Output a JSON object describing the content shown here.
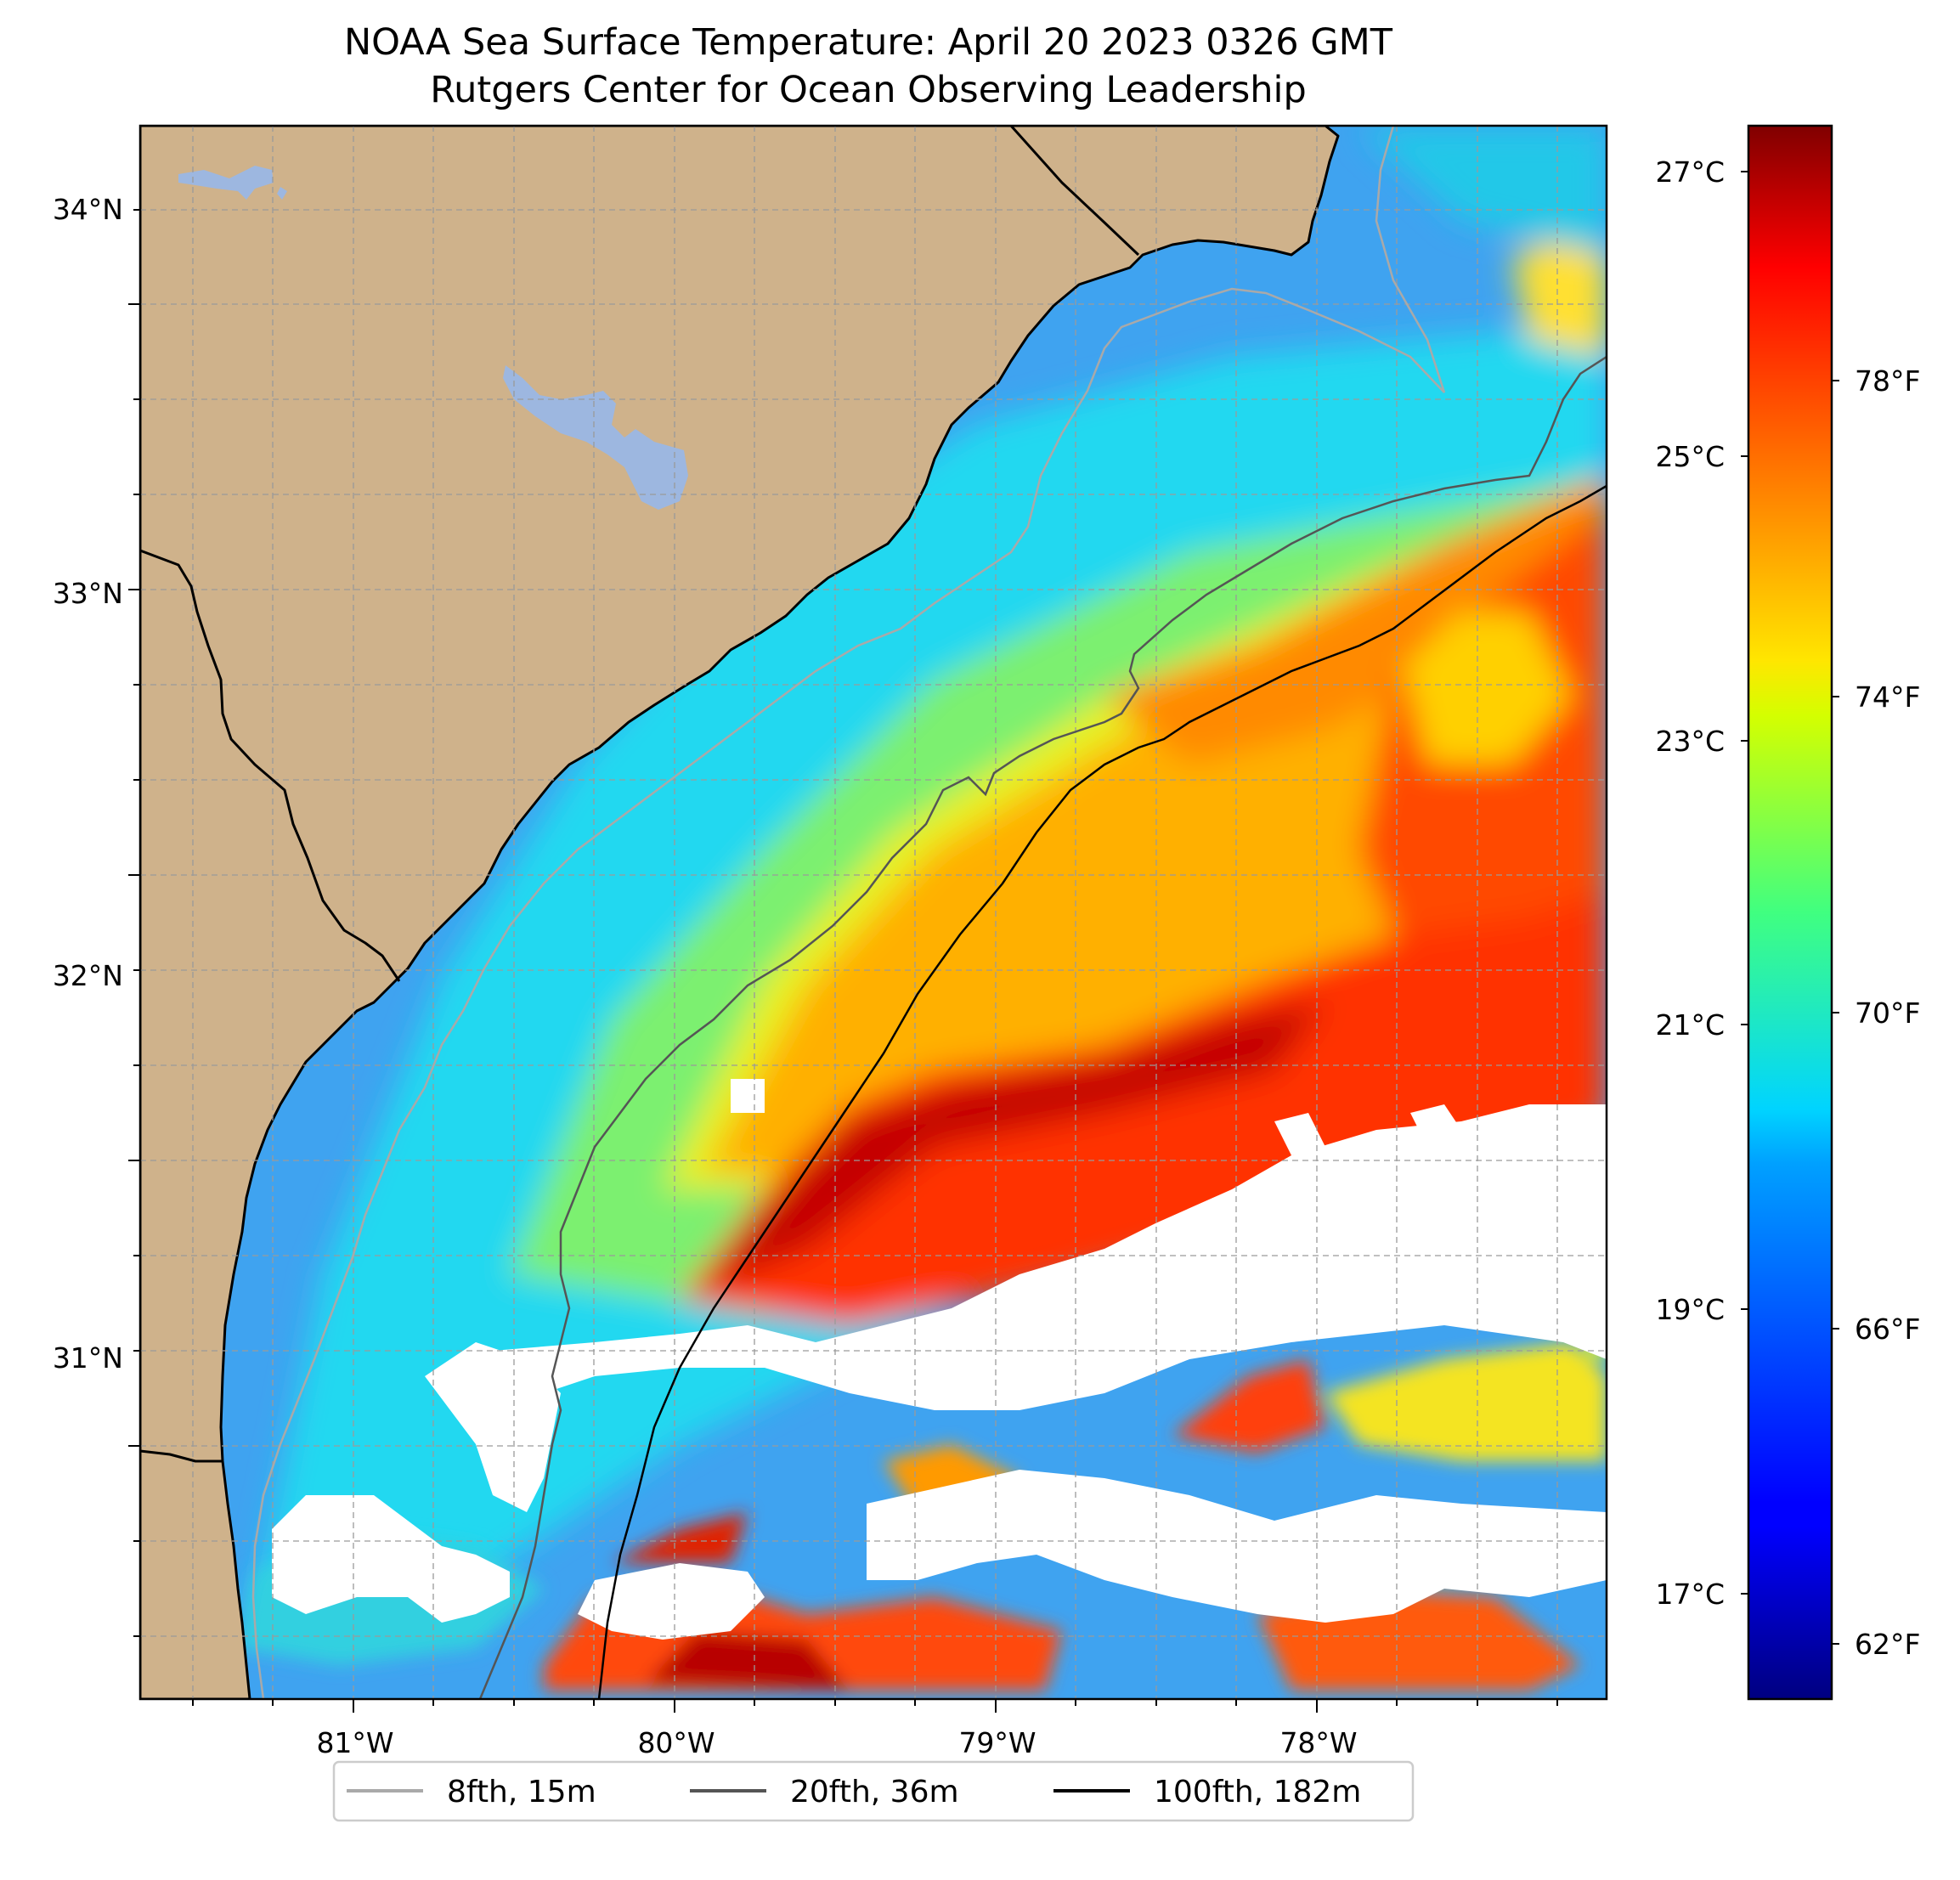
{
  "title": {
    "line1": "NOAA Sea Surface Temperature: April 20 2023 0326 GMT",
    "line2": "Rutgers Center for Ocean Observing Leadership"
  },
  "map": {
    "lon_ticks": [
      "81°W",
      "80°W",
      "79°W",
      "78°W"
    ],
    "lat_ticks": [
      "34°N",
      "33°N",
      "32°N",
      "31°N"
    ],
    "extent": {
      "lon_min": -81.68,
      "lon_max": -77.1,
      "lat_min": 30.08,
      "lat_max": 34.22
    },
    "colors": {
      "land": "#cfb28b",
      "lake": "#9db7e0",
      "no_data": "#ffffff",
      "grid": "#9a9a9a"
    }
  },
  "colorbar": {
    "celsius_ticks": [
      "27°C",
      "25°C",
      "23°C",
      "21°C",
      "19°C",
      "17°C"
    ],
    "fahrenheit_ticks": [
      "78°F",
      "74°F",
      "70°F",
      "66°F",
      "62°F"
    ],
    "colormap": "jet"
  },
  "legend": {
    "items": [
      {
        "label": "8fth, 15m",
        "color": "#a9a9a9"
      },
      {
        "label": "20fth, 36m",
        "color": "#555555"
      },
      {
        "label": "100fth, 182m",
        "color": "#000000"
      }
    ]
  }
}
